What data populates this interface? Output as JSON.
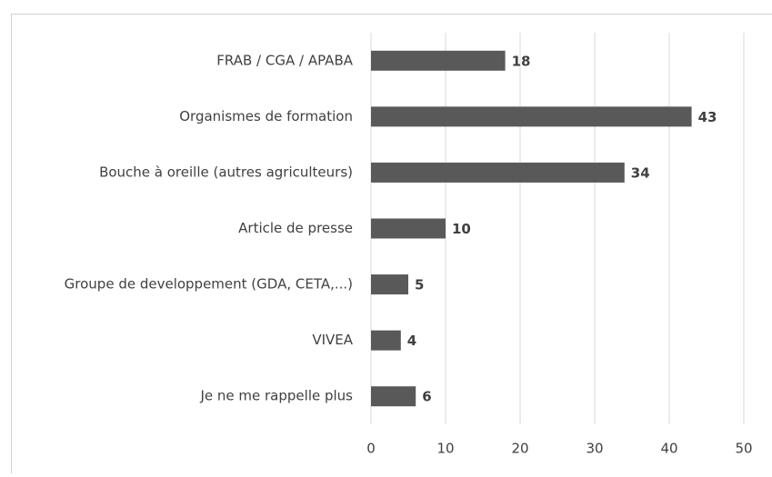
{
  "chart_data": {
    "type": "bar",
    "orientation": "horizontal",
    "categories": [
      "FRAB / CGA / APABA",
      "Organismes de formation",
      "Bouche à oreille (autres agriculteurs)",
      "Article de presse",
      "Groupe de developpement (GDA, CETA,...)",
      "VIVEA",
      "Je ne me rappelle plus"
    ],
    "values": [
      18,
      43,
      34,
      10,
      5,
      4,
      6
    ],
    "color": "#595959",
    "xlim": [
      0,
      50
    ],
    "xticks": [
      0,
      10,
      20,
      30,
      40,
      50
    ],
    "grid": true
  }
}
